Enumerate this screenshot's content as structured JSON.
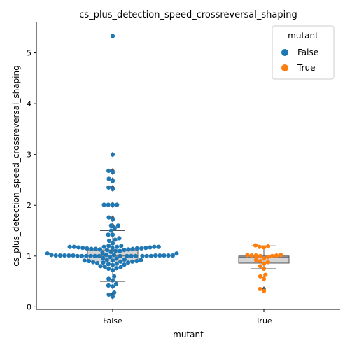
{
  "chart_data": {
    "type": "scatter",
    "subtype": "box-swarm",
    "title": "cs_plus_detection_speed_crossreversal_shaping",
    "xlabel": "mutant",
    "ylabel": "cs_plus_detection_speed_crossreversal_shaping",
    "categories": [
      "False",
      "True"
    ],
    "ylim": [
      -0.05,
      5.6
    ],
    "yticks": [
      0,
      1,
      2,
      3,
      4,
      5
    ],
    "grid": false,
    "legend": {
      "title": "mutant",
      "placement": "top-right",
      "entries": [
        {
          "label": "False",
          "color": "#1f77b4"
        },
        {
          "label": "True",
          "color": "#ff7f0e"
        }
      ]
    },
    "boxes": [
      {
        "category": "False",
        "q1": 0.88,
        "median": 1.0,
        "q3": 1.12,
        "whisker_low": 0.5,
        "whisker_high": 1.5,
        "fliers": [
          5.33,
          3.0,
          2.68,
          2.65,
          2.5,
          2.35,
          2.32,
          2.02,
          2.0,
          1.75,
          1.72,
          1.6,
          0.4,
          0.25,
          0.2
        ]
      },
      {
        "category": "True",
        "q1": 0.86,
        "median": 0.98,
        "q3": 1.0,
        "whisker_low": 0.75,
        "whisker_high": 1.2,
        "fliers": [
          0.55,
          0.35,
          0.33
        ]
      }
    ],
    "series": [
      {
        "name": "False",
        "color": "#1f77b4",
        "category": "False",
        "values": [
          5.33,
          3.0,
          2.68,
          2.65,
          2.52,
          2.48,
          2.35,
          2.32,
          2.01,
          2.01,
          2.01,
          2.01,
          1.76,
          1.72,
          1.6,
          1.6,
          1.55,
          1.5,
          1.42,
          1.42,
          1.35,
          1.32,
          1.3,
          1.25,
          1.2,
          1.2,
          1.18,
          1.18,
          1.18,
          1.18,
          1.18,
          1.18,
          1.17,
          1.17,
          1.16,
          1.16,
          1.16,
          1.15,
          1.15,
          1.15,
          1.14,
          1.14,
          1.14,
          1.13,
          1.13,
          1.12,
          1.12,
          1.1,
          1.1,
          1.08,
          1.06,
          1.05,
          1.05,
          1.02,
          1.02,
          1.02,
          1.01,
          1.01,
          1.01,
          1.01,
          1.01,
          1.01,
          1.01,
          1.01,
          1.01,
          1.01,
          1.0,
          1.0,
          1.0,
          1.0,
          1.0,
          1.0,
          1.0,
          1.0,
          1.0,
          1.0,
          1.0,
          1.0,
          1.0,
          0.98,
          0.96,
          0.95,
          0.93,
          0.92,
          0.92,
          0.91,
          0.91,
          0.9,
          0.9,
          0.89,
          0.89,
          0.88,
          0.87,
          0.87,
          0.86,
          0.85,
          0.84,
          0.83,
          0.82,
          0.8,
          0.79,
          0.78,
          0.76,
          0.75,
          0.72,
          0.6,
          0.55,
          0.52,
          0.45,
          0.42,
          0.4,
          0.28,
          0.24,
          0.2
        ]
      },
      {
        "name": "True",
        "color": "#ff7f0e",
        "category": "True",
        "values": [
          1.21,
          1.19,
          1.18,
          1.17,
          1.02,
          1.02,
          1.01,
          1.01,
          1.01,
          1.0,
          1.0,
          0.98,
          0.95,
          0.92,
          0.9,
          0.88,
          0.85,
          0.8,
          0.75,
          0.63,
          0.6,
          0.55,
          0.35,
          0.31
        ]
      }
    ]
  }
}
